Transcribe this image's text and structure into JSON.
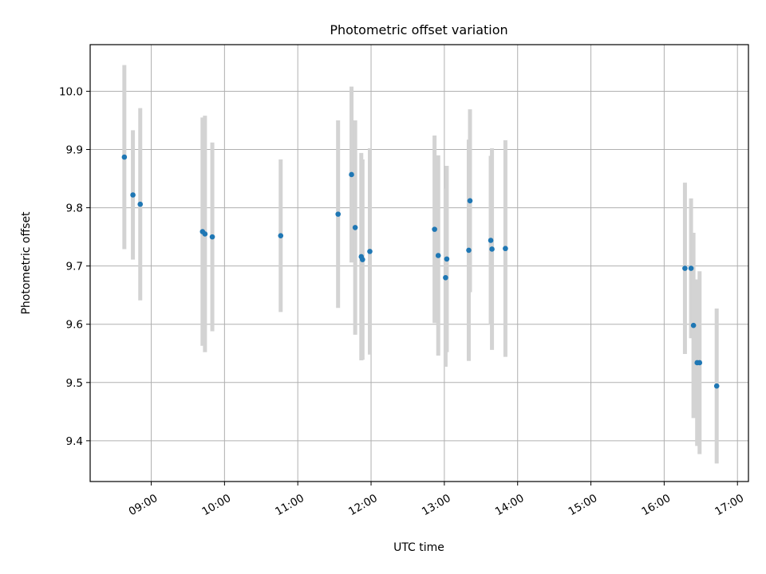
{
  "chart_data": {
    "type": "scatter",
    "title": "Photometric offset variation",
    "xlabel": "UTC time",
    "ylabel": "Photometric offset",
    "x_ticks": [
      "09:00",
      "10:00",
      "11:00",
      "12:00",
      "13:00",
      "14:00",
      "15:00",
      "16:00",
      "17:00"
    ],
    "y_ticks": [
      "9.4",
      "9.5",
      "9.6",
      "9.7",
      "9.8",
      "9.9",
      "10.0"
    ],
    "xlim": [
      "08:10",
      "17:09"
    ],
    "ylim": [
      9.33,
      10.08
    ],
    "grid": true,
    "point_color": "#1f77b4",
    "errorbar_color": "#d3d3d3",
    "points": [
      {
        "x": "08:38",
        "y": 9.887,
        "err": 0.158
      },
      {
        "x": "08:45",
        "y": 9.822,
        "err": 0.111
      },
      {
        "x": "08:51",
        "y": 9.806,
        "err": 0.165
      },
      {
        "x": "09:42",
        "y": 9.759,
        "err": 0.196
      },
      {
        "x": "09:44",
        "y": 9.755,
        "err": 0.203
      },
      {
        "x": "09:50",
        "y": 9.75,
        "err": 0.162
      },
      {
        "x": "10:46",
        "y": 9.752,
        "err": 0.131
      },
      {
        "x": "11:33",
        "y": 9.789,
        "err": 0.161
      },
      {
        "x": "11:44",
        "y": 9.857,
        "err": 0.151
      },
      {
        "x": "11:47",
        "y": 9.766,
        "err": 0.184
      },
      {
        "x": "11:52",
        "y": 9.716,
        "err": 0.178
      },
      {
        "x": "11:53",
        "y": 9.711,
        "err": 0.172
      },
      {
        "x": "11:59",
        "y": 9.725,
        "err": 0.177
      },
      {
        "x": "12:52",
        "y": 9.763,
        "err": 0.161
      },
      {
        "x": "12:55",
        "y": 9.718,
        "err": 0.172
      },
      {
        "x": "13:01",
        "y": 9.68,
        "err": 0.153
      },
      {
        "x": "13:02",
        "y": 9.712,
        "err": 0.16
      },
      {
        "x": "13:20",
        "y": 9.727,
        "err": 0.19
      },
      {
        "x": "13:21",
        "y": 9.812,
        "err": 0.157
      },
      {
        "x": "13:38",
        "y": 9.744,
        "err": 0.145
      },
      {
        "x": "13:39",
        "y": 9.729,
        "err": 0.173
      },
      {
        "x": "13:50",
        "y": 9.73,
        "err": 0.186
      },
      {
        "x": "16:17",
        "y": 9.696,
        "err": 0.147
      },
      {
        "x": "16:22",
        "y": 9.696,
        "err": 0.12
      },
      {
        "x": "16:24",
        "y": 9.598,
        "err": 0.159
      },
      {
        "x": "16:27",
        "y": 9.534,
        "err": 0.143
      },
      {
        "x": "16:29",
        "y": 9.534,
        "err": 0.157
      },
      {
        "x": "16:43",
        "y": 9.494,
        "err": 0.133
      }
    ]
  }
}
